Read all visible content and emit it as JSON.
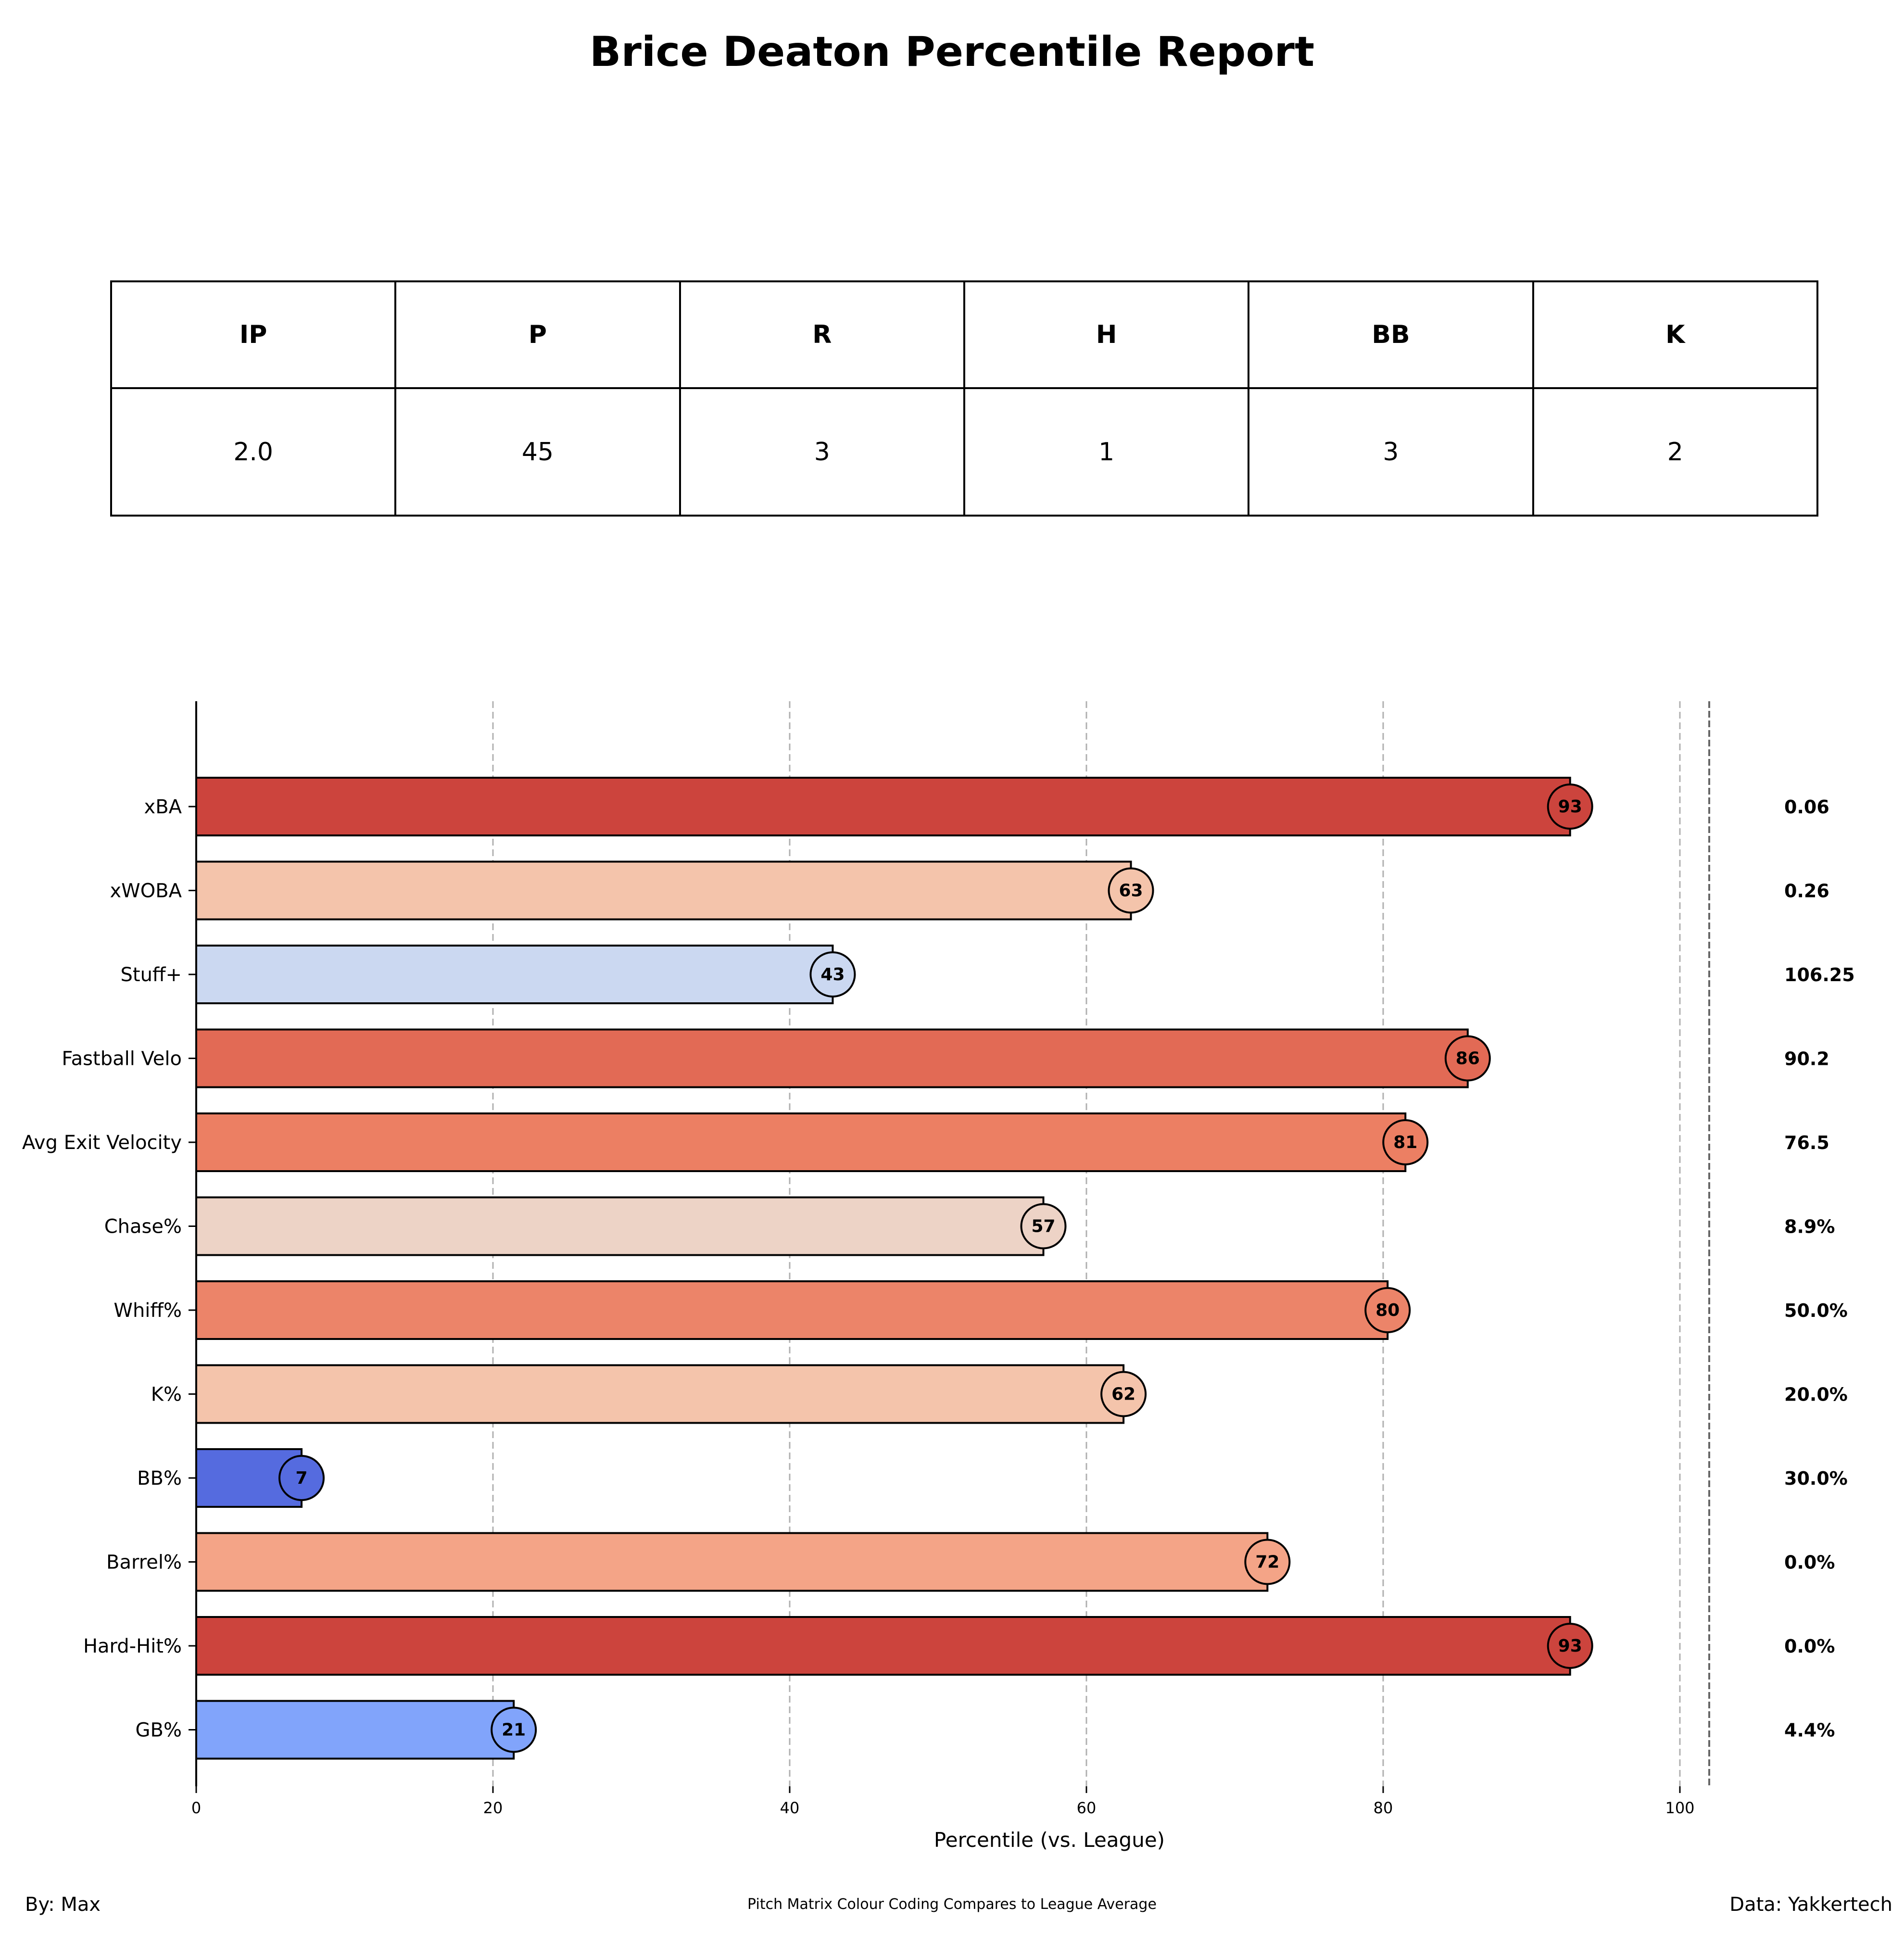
{
  "title": "Brice Deaton Percentile Report",
  "stats_table": {
    "headers": [
      "IP",
      "P",
      "R",
      "H",
      "BB",
      "K"
    ],
    "values": [
      "2.0",
      "45",
      "3",
      "1",
      "3",
      "2"
    ]
  },
  "footer": {
    "left": "By: Max",
    "center": "Pitch Matrix Colour Coding Compares to League Average",
    "right": "Data: Yakkertech"
  },
  "chart_data": {
    "type": "bar",
    "orientation": "horizontal",
    "title": "",
    "xlabel": "Percentile (vs. League)",
    "ylabel": "",
    "xlim": [
      0,
      102
    ],
    "xticks": [
      0,
      20,
      40,
      60,
      80,
      100
    ],
    "grid": "vertical dashed at x ticks",
    "categories": [
      "xBA",
      "xWOBA",
      "Stuff+",
      "Fastball Velo",
      "Avg Exit Velocity",
      "Chase%",
      "Whiff%",
      "K%",
      "BB%",
      "Barrel%",
      "Hard-Hit%",
      "GB%"
    ],
    "values": [
      92.6,
      63.0,
      42.9,
      85.7,
      81.5,
      57.1,
      80.3,
      62.5,
      7.1,
      72.2,
      92.6,
      21.4
    ],
    "value_labels": [
      "93",
      "63",
      "43",
      "86",
      "81",
      "57",
      "80",
      "62",
      "7",
      "72",
      "93",
      "21"
    ],
    "stat_values": [
      "0.06",
      "0.26",
      "106.25",
      "90.2",
      "76.5",
      "8.9%",
      "50.0%",
      "20.0%",
      "30.0%",
      "0.0%",
      "0.0%",
      "4.4%"
    ],
    "colors": [
      "#cc443d",
      "#f4c4ab",
      "#cbd8f1",
      "#e26a55",
      "#ec7f63",
      "#edd3c6",
      "#ec8469",
      "#f4c4ab",
      "#556bdf",
      "#f4a487",
      "#cc443d",
      "#81a4fb"
    ]
  }
}
